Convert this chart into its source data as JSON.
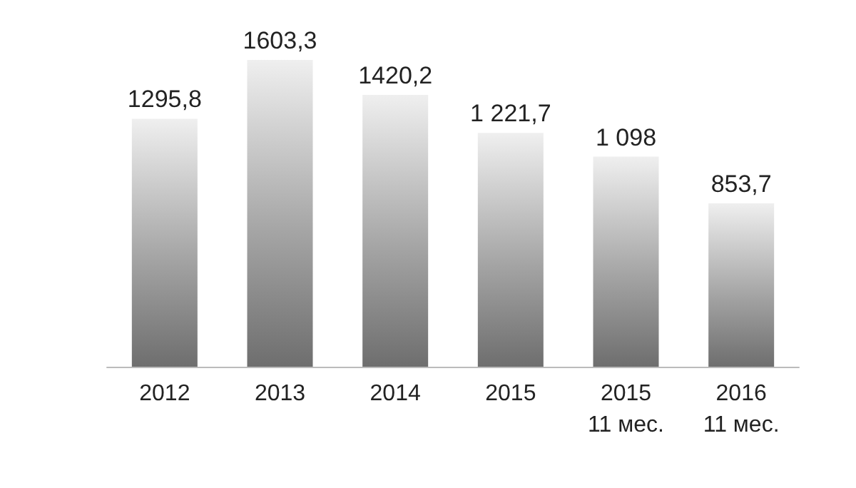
{
  "chart_data": {
    "type": "bar",
    "categories": [
      "2012",
      "2013",
      "2014",
      "2015",
      "2015\n11 мес.",
      "2016\n11 мес."
    ],
    "values": [
      1295.8,
      1603.3,
      1420.2,
      1221.7,
      1098,
      853.7
    ],
    "value_labels": [
      "1295,8",
      "1603,3",
      "1420,2",
      "1 221,7",
      "1 098",
      "853,7"
    ],
    "color": "#a6a6a6",
    "tick_labels": "x"
  }
}
